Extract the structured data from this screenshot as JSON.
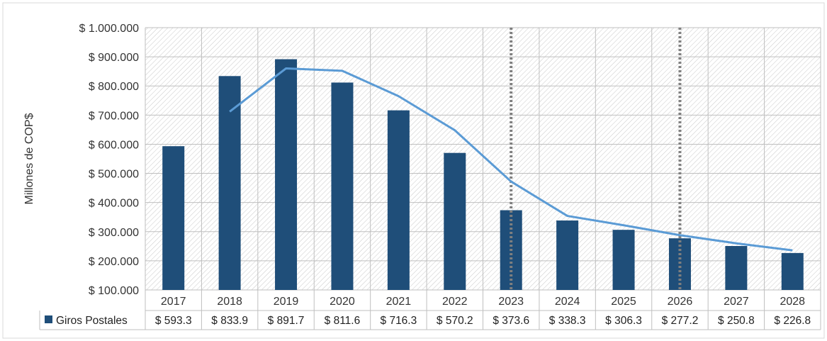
{
  "chart_data": {
    "type": "bar",
    "categories": [
      "2017",
      "2018",
      "2019",
      "2020",
      "2021",
      "2022",
      "2023",
      "2024",
      "2025",
      "2026",
      "2027",
      "2028"
    ],
    "series": [
      {
        "name": "Giros Postales",
        "values": [
          593.3,
          833.9,
          891.7,
          811.6,
          716.3,
          570.2,
          373.6,
          338.3,
          306.3,
          277.2,
          250.8,
          226.8
        ],
        "color": "#1f4e79"
      }
    ],
    "trend_line": {
      "values": [
        null,
        712,
        860,
        852,
        765,
        648,
        472,
        354,
        322,
        288,
        260,
        236
      ],
      "color": "#5b9bd5"
    },
    "data_table": {
      "legend_label": "Giros Postales",
      "cells": [
        "$ 593.3",
        "$ 833.9",
        "$ 891.7",
        "$ 811.6",
        "$ 716.3",
        "$ 570.2",
        "$ 373.6",
        "$ 338.3",
        "$ 306.3",
        "$ 277.2",
        "$ 250.8",
        "$ 226.8"
      ]
    },
    "ylabel": "Millones de COP$",
    "ylim": [
      100,
      1000
    ],
    "y_ticks": [
      {
        "value": 1000,
        "label": "$ 1.000.000"
      },
      {
        "value": 900,
        "label": "$ 900.000"
      },
      {
        "value": 800,
        "label": "$ 800.000"
      },
      {
        "value": 700,
        "label": "$ 700.000"
      },
      {
        "value": 600,
        "label": "$ 600.000"
      },
      {
        "value": 500,
        "label": "$ 500.000"
      },
      {
        "value": 400,
        "label": "$ 400.000"
      },
      {
        "value": 300,
        "label": "$ 300.000"
      },
      {
        "value": 200,
        "label": "$ 200.000"
      },
      {
        "value": 100,
        "label": "$ 100.000"
      }
    ],
    "vertical_markers": [
      "2023",
      "2026"
    ],
    "grid": true,
    "plot_background": "hatched"
  }
}
